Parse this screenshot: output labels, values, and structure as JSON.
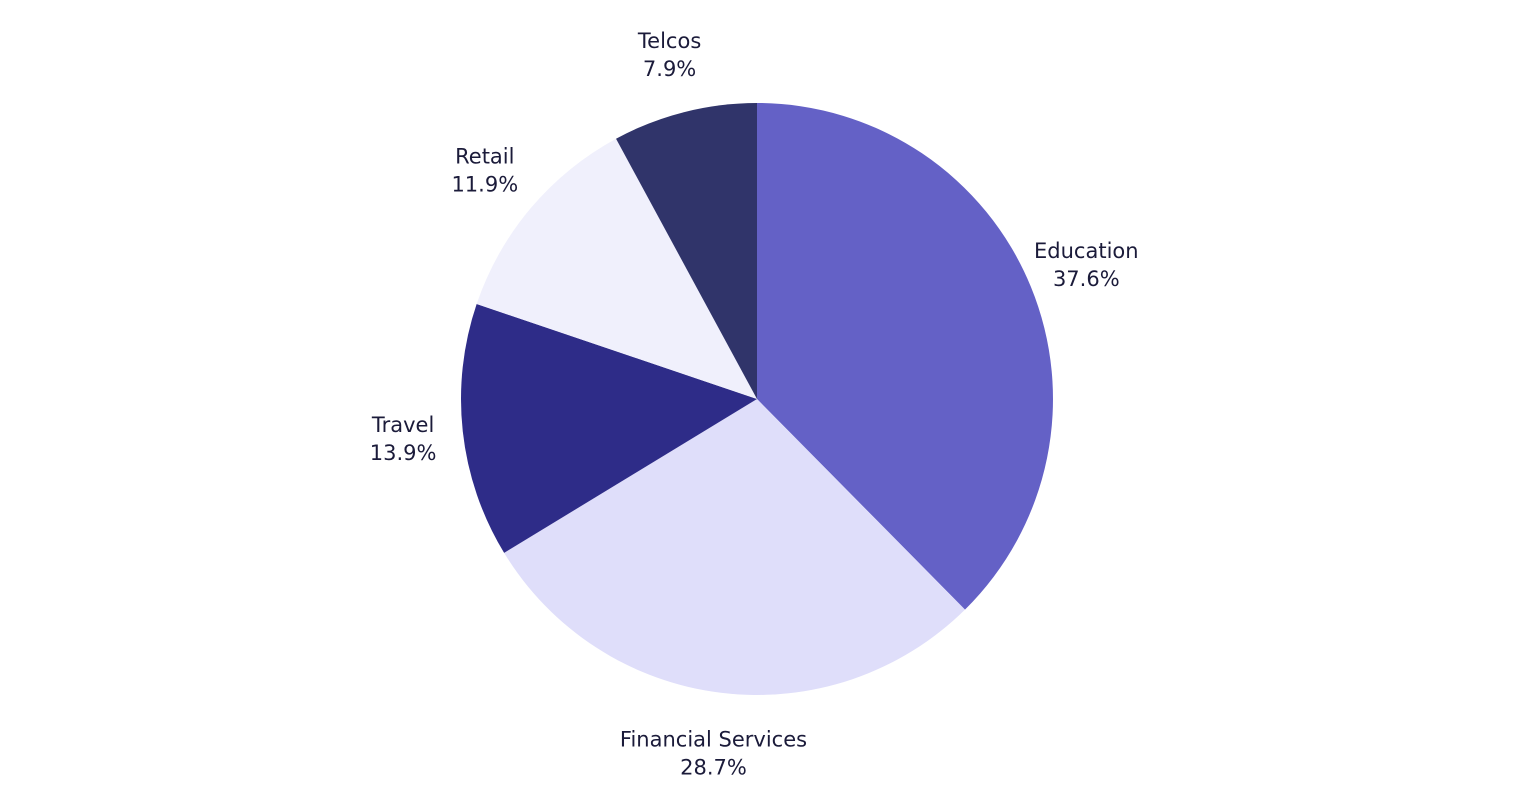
{
  "chart_data": {
    "type": "pie",
    "title": "",
    "start_angle_deg": 0,
    "direction": "clockwise",
    "slices": [
      {
        "name": "Education",
        "value": 37.6,
        "label": "37.6%",
        "color": "#6461c6"
      },
      {
        "name": "Financial Services",
        "value": 28.7,
        "label": "28.7%",
        "color": "#dfdefa"
      },
      {
        "name": "Travel",
        "value": 13.9,
        "label": "13.9%",
        "color": "#2e2c88"
      },
      {
        "name": "Retail",
        "value": 11.9,
        "label": "11.9%",
        "color": "#f0f0fc"
      },
      {
        "name": "Telcos",
        "value": 7.9,
        "label": "7.9%",
        "color": "#30346a"
      }
    ],
    "legend": "none"
  }
}
